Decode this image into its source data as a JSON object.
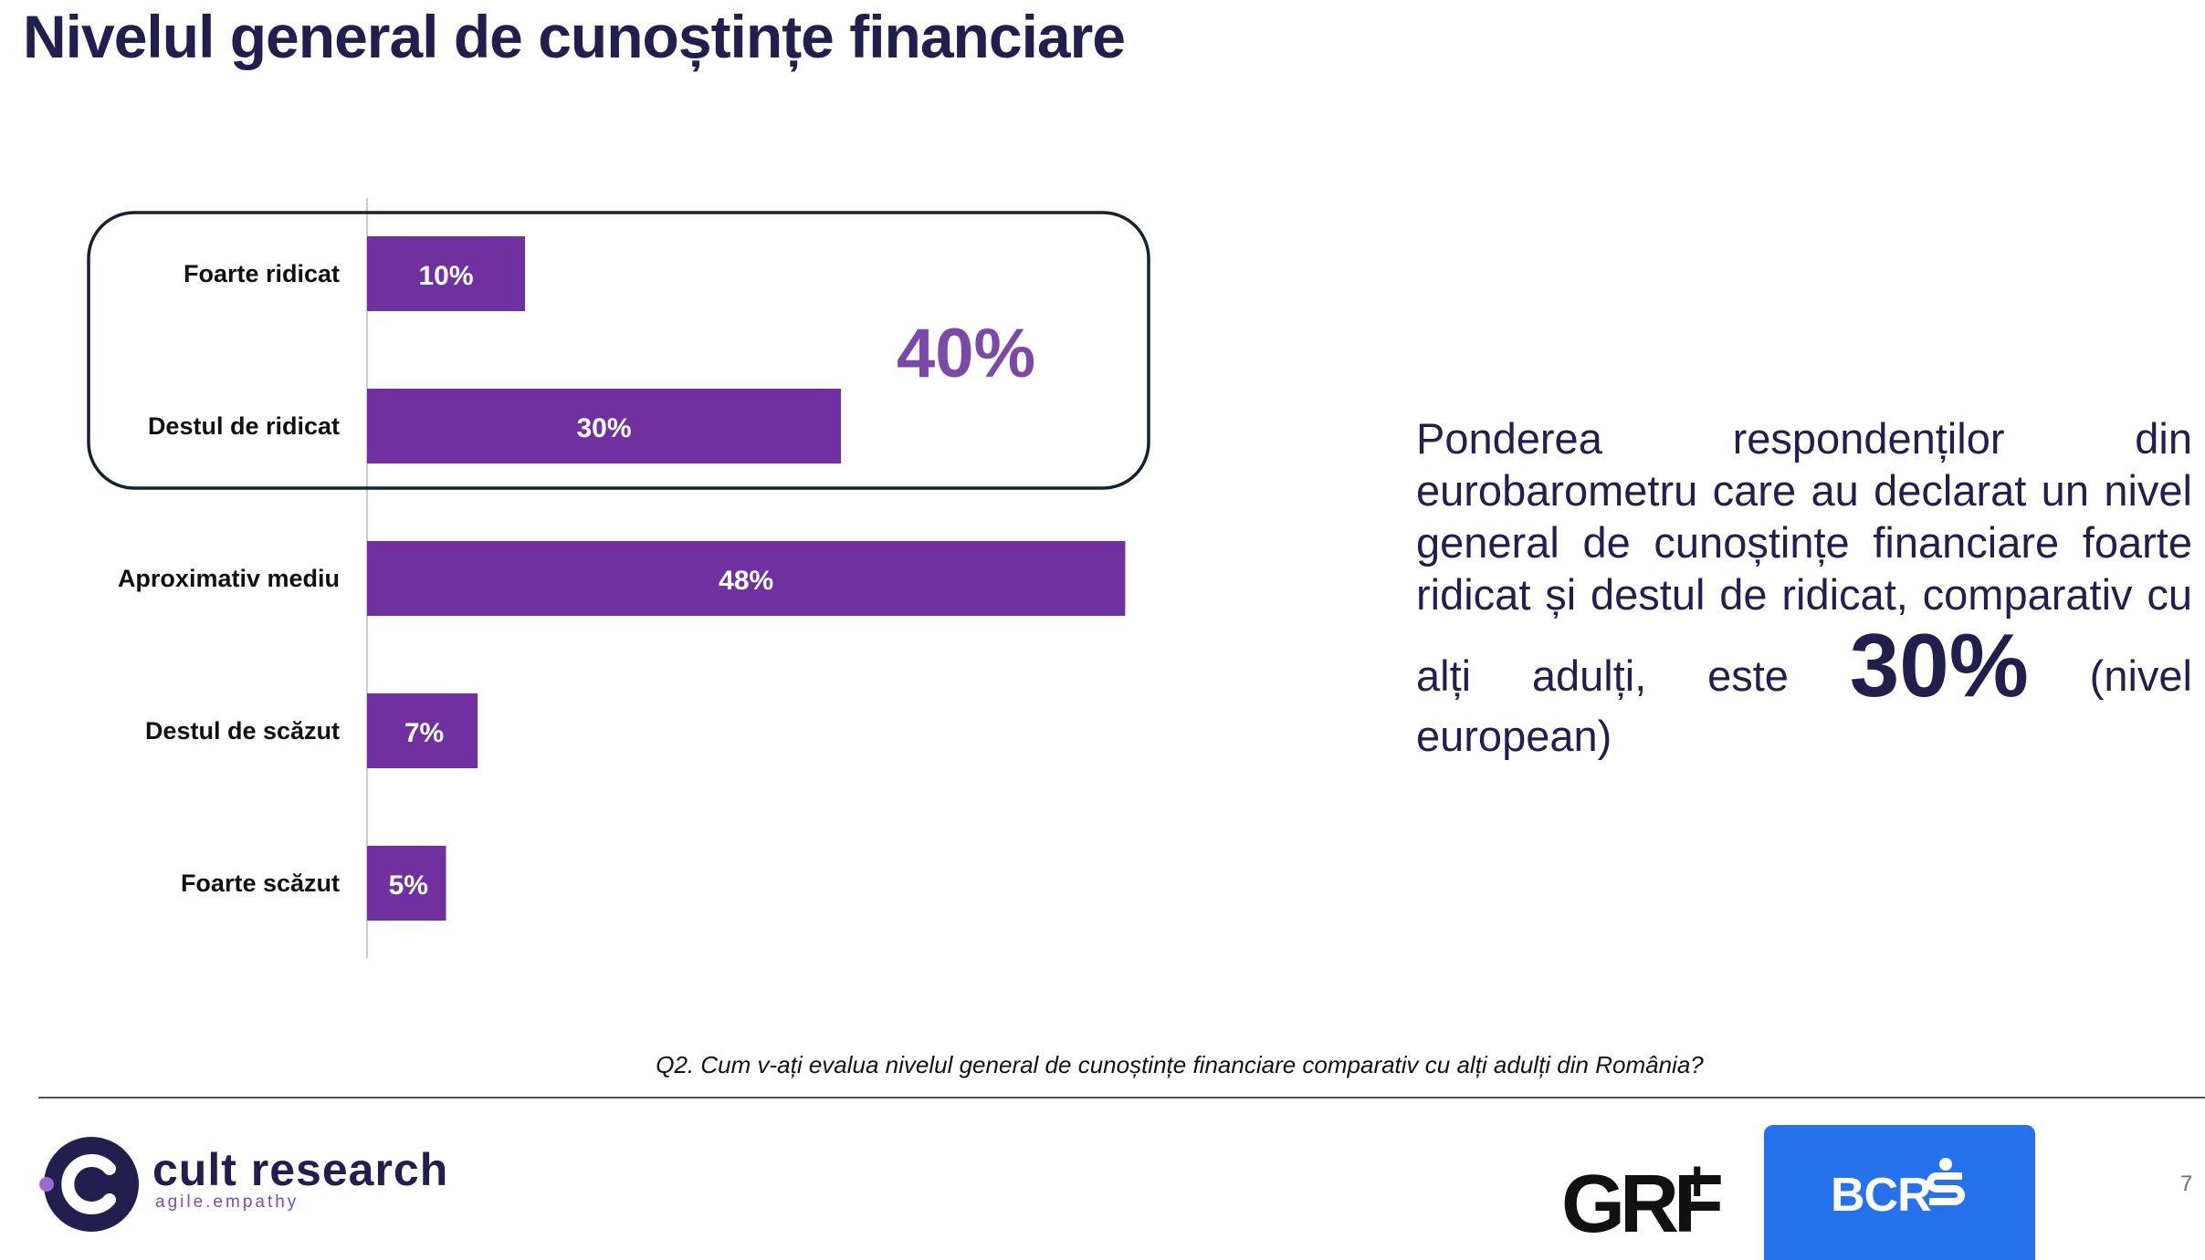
{
  "title": "Nivelul general de cunoștințe financiare",
  "chart_data": {
    "type": "bar",
    "orientation": "horizontal",
    "categories": [
      "Foarte ridicat",
      "Destul de ridicat",
      "Aproximativ mediu",
      "Destul de scăzut",
      "Foarte scăzut"
    ],
    "values": [
      10,
      30,
      48,
      7,
      5
    ],
    "value_labels": [
      "10%",
      "30%",
      "48%",
      "7%",
      "5%"
    ],
    "bar_color": "#7030a0",
    "label_color": "#111111",
    "group_highlight": {
      "categories": [
        "Foarte ridicat",
        "Destul de ridicat"
      ],
      "label": "40%",
      "label_color": "#7b4aa8"
    },
    "xlim": [
      0,
      48
    ],
    "grid": false,
    "legend": "none"
  },
  "side_text": {
    "before": "Ponderea respondenților din eurobarometru care au declarat un nivel general de cunoștințe financiare foarte ridicat și destul de ridicat, comparativ cu alți adulți, este",
    "highlight": "30%",
    "after": "(nivel european)"
  },
  "footnote": "Q2. Cum v-ați evalua nivelul general de cunoștințe financiare comparativ cu alți adulți din România?",
  "footer": {
    "brand_name": "cult research",
    "brand_tagline": "agile.empathy",
    "partner_logo_1": "GRF",
    "partner_logo_1_plus": "+",
    "partner_logo_2": "BCR",
    "page_number": "7"
  },
  "colors": {
    "title": "#221f4f",
    "accent": "#7030a0",
    "bcr_blue": "#2672ec"
  },
  "icons": {
    "brand": "cult-research-logo-icon",
    "bank": "bcr-s-icon"
  }
}
